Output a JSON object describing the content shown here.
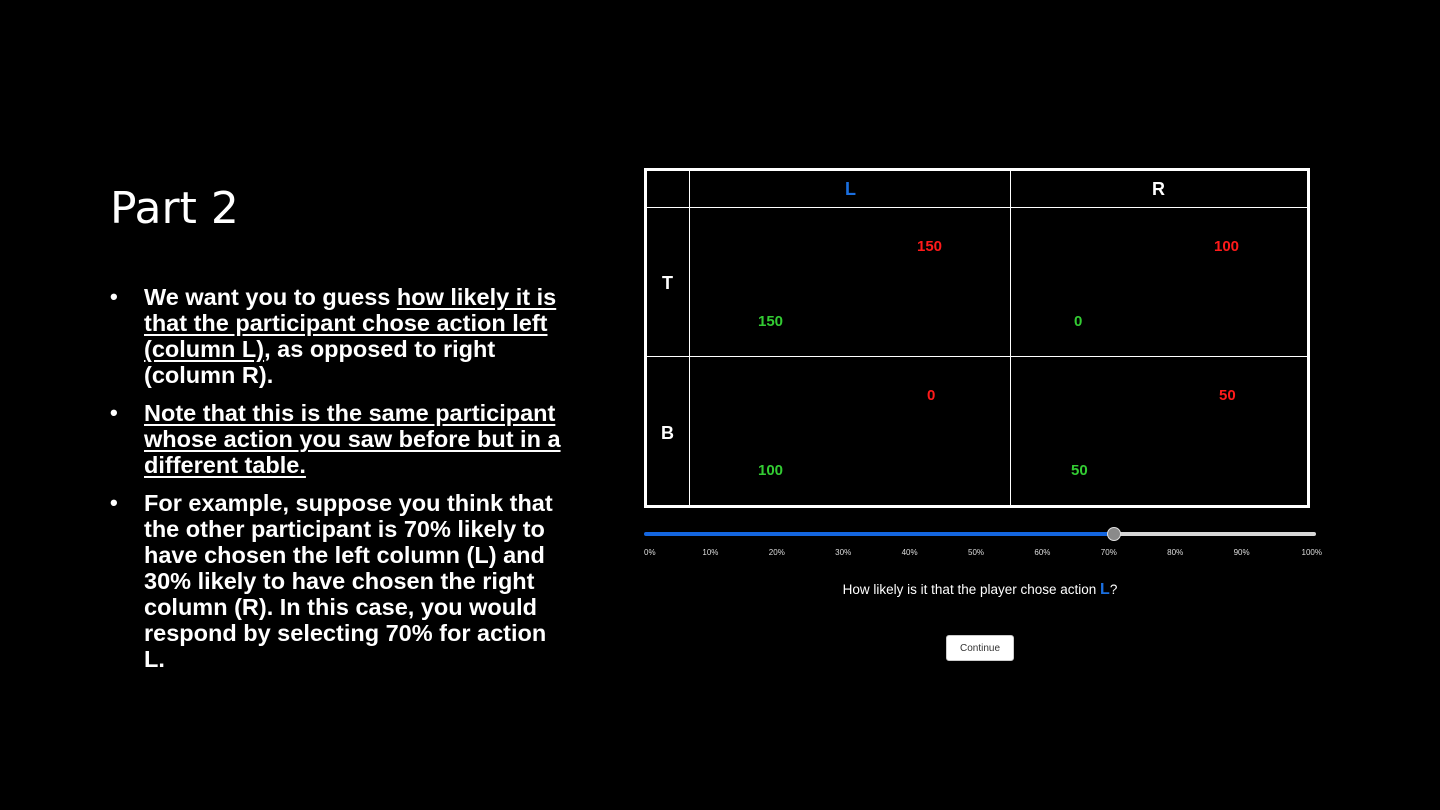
{
  "slide": {
    "title": "Part 2",
    "bullets": [
      {
        "segments": [
          {
            "text": "We want you to guess ",
            "underline": false
          },
          {
            "text": "how likely it is that the participant chose action left (column L)",
            "underline": true
          },
          {
            "text": ", as opposed to right (column R).",
            "underline": false
          }
        ]
      },
      {
        "segments": [
          {
            "text": "Note that this is the same participant whose action you saw before but in a different table.",
            "underline": true
          }
        ]
      },
      {
        "segments": [
          {
            "text": "For example, suppose you think that the other participant is 70% likely to have chosen the left column (L) and 30% likely to have chosen the right column (R).  In this case, you would respond by selecting 70% for action L.",
            "underline": false
          }
        ]
      }
    ]
  },
  "payoff_table": {
    "col_headers": [
      "L",
      "R"
    ],
    "row_headers": [
      "T",
      "B"
    ],
    "cells": [
      [
        {
          "top": "150",
          "bottom": "150"
        },
        {
          "top": "100",
          "bottom": "0"
        }
      ],
      [
        {
          "top": "0",
          "bottom": "100"
        },
        {
          "top": "50",
          "bottom": "50"
        }
      ]
    ],
    "colors": {
      "L_header": "#1a6fe0",
      "R_header": "#ffffff",
      "top_value": "#ff1a1a",
      "bottom_value": "#33cc33"
    }
  },
  "slider": {
    "value_percent": 70,
    "ticks": [
      "0%",
      "10%",
      "20%",
      "30%",
      "40%",
      "50%",
      "60%",
      "70%",
      "80%",
      "90%",
      "100%"
    ],
    "fill_color": "#1466e0"
  },
  "question": {
    "prefix": "How likely is it that the player chose action ",
    "action": "L",
    "suffix": "?"
  },
  "continue_label": "Continue"
}
